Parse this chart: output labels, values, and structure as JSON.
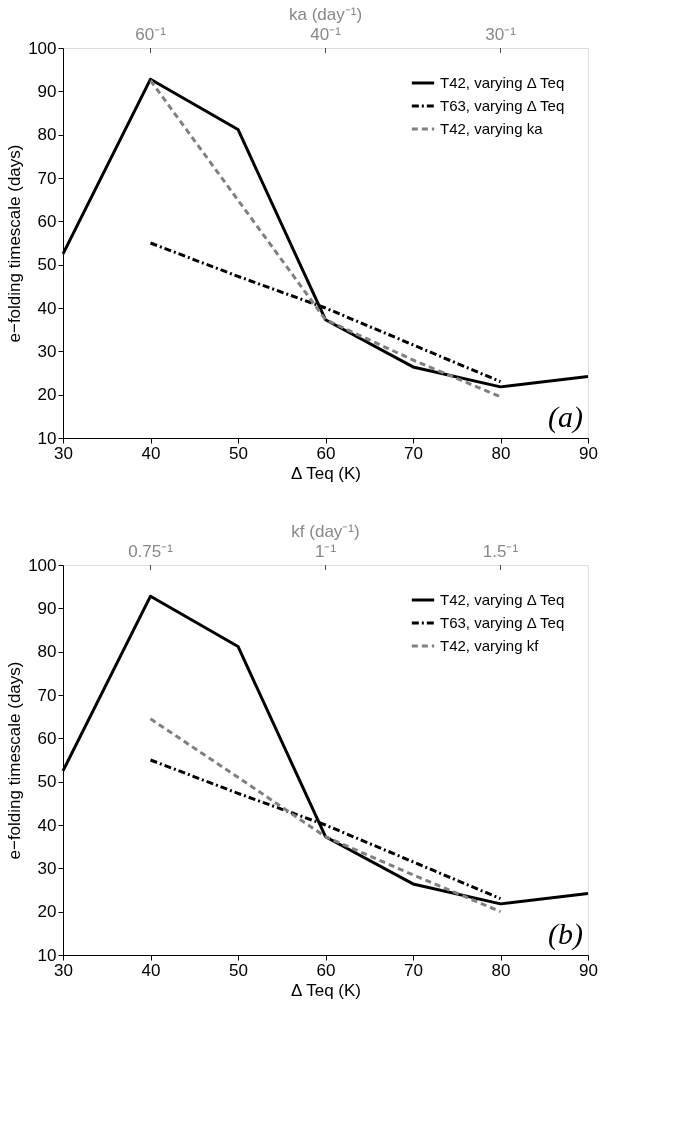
{
  "chart_data": [
    {
      "type": "line",
      "xlabel": "Δ Teq (K)",
      "ylabel": "e−folding timescale (days)",
      "x2label": "ka (day⁻¹)",
      "xlim": [
        30,
        90
      ],
      "xticks": [
        30,
        40,
        50,
        60,
        70,
        80,
        90
      ],
      "ylim": [
        10,
        100
      ],
      "yticks": [
        10,
        20,
        30,
        40,
        50,
        60,
        70,
        80,
        90,
        100
      ],
      "grid": false,
      "legend": "top right",
      "marker": "none",
      "annotations": [
        "(a)",
        "60⁻¹",
        "40⁻¹",
        "30⁻¹"
      ],
      "series": [
        {
          "name": "T42, varying Δ Teq",
          "color": "#000000",
          "line_style": "solid",
          "x": [
            30,
            40,
            50,
            60,
            70,
            80,
            90
          ],
          "values": [
            52.5,
            92.8,
            81.2,
            37.3,
            26.4,
            21.8,
            24.2
          ]
        },
        {
          "name": "T63, varying Δ Teq",
          "color": "#000000",
          "line_style": "dashdot",
          "x": [
            40,
            50,
            60,
            70,
            80
          ],
          "values": [
            55,
            47.3,
            40,
            31.5,
            23
          ]
        },
        {
          "name": "T42, varying ka",
          "color": "#808080",
          "line_style": "dashed",
          "x": [
            40,
            60,
            70,
            80
          ],
          "values": [
            92.5,
            37.3,
            28,
            19.5
          ]
        }
      ]
    },
    {
      "type": "line",
      "xlabel": "Δ Teq (K)",
      "ylabel": "e−folding timescale (days)",
      "x2label": "kf (day⁻¹)",
      "xlim": [
        30,
        90
      ],
      "xticks": [
        30,
        40,
        50,
        60,
        70,
        80,
        90
      ],
      "ylim": [
        10,
        100
      ],
      "yticks": [
        10,
        20,
        30,
        40,
        50,
        60,
        70,
        80,
        90,
        100
      ],
      "grid": false,
      "legend": "top right",
      "marker": "none",
      "annotations": [
        "(b)",
        "0.75⁻¹",
        "1⁻¹",
        "1.5⁻¹"
      ],
      "series": [
        {
          "name": "T42, varying Δ Teq",
          "color": "#000000",
          "line_style": "solid",
          "x": [
            30,
            40,
            50,
            60,
            70,
            80,
            90
          ],
          "values": [
            52.5,
            92.8,
            81.2,
            37.3,
            26.4,
            21.8,
            24.2
          ]
        },
        {
          "name": "T63, varying Δ Teq",
          "color": "#000000",
          "line_style": "dashdot",
          "x": [
            40,
            50,
            60,
            70,
            80
          ],
          "values": [
            55,
            47.3,
            40,
            31.5,
            23
          ]
        },
        {
          "name": "T42, varying kf",
          "color": "#808080",
          "line_style": "dashed",
          "x": [
            40,
            50,
            60,
            70,
            80
          ],
          "values": [
            64.5,
            51,
            37.3,
            28.5,
            20
          ]
        }
      ]
    }
  ]
}
